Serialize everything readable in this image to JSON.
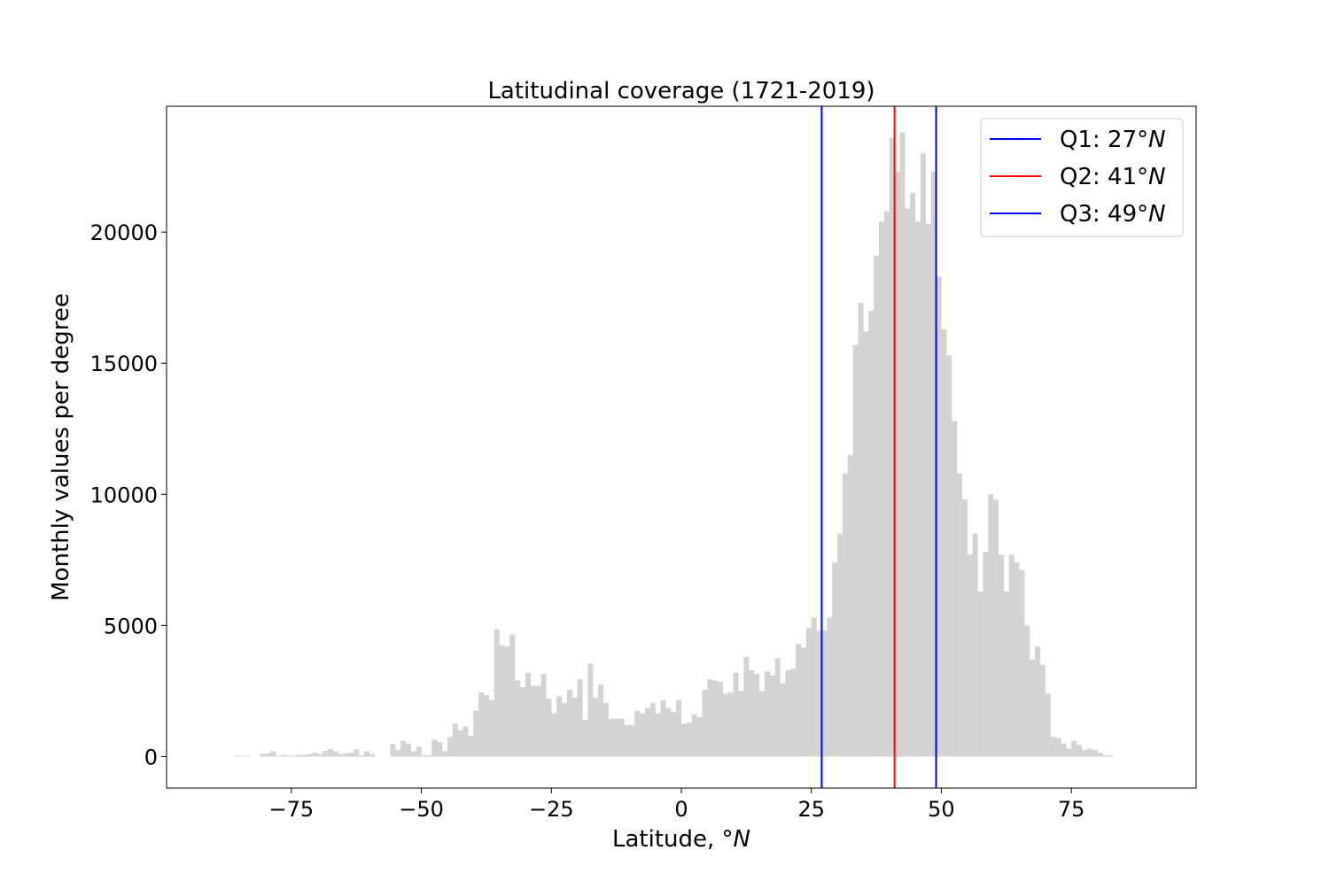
{
  "chart_data": {
    "type": "bar",
    "title": "Latitudinal coverage (1721-2019)",
    "xlabel": "Latitude, °",
    "xlabel_unit": "N",
    "ylabel": "Monthly values per degree",
    "xlim": [
      -99,
      99
    ],
    "ylim": [
      -1200,
      24800
    ],
    "xticks": [
      -75,
      -50,
      -25,
      0,
      25,
      50,
      75
    ],
    "xtick_labels": [
      "−75",
      "−50",
      "−25",
      "0",
      "25",
      "50",
      "75"
    ],
    "yticks": [
      0,
      5000,
      10000,
      15000,
      20000
    ],
    "ytick_labels": [
      "0",
      "5000",
      "10000",
      "15000",
      "20000"
    ],
    "grid": false,
    "bar_color": "#d3d3d3",
    "bin_width": 1,
    "bins": [
      [
        -86,
        30
      ],
      [
        -85,
        30
      ],
      [
        -84,
        30
      ],
      [
        -81,
        100
      ],
      [
        -80,
        120
      ],
      [
        -79,
        200
      ],
      [
        -78,
        30
      ],
      [
        -77,
        60
      ],
      [
        -76,
        30
      ],
      [
        -75,
        30
      ],
      [
        -74,
        60
      ],
      [
        -73,
        60
      ],
      [
        -72,
        100
      ],
      [
        -71,
        150
      ],
      [
        -70,
        100
      ],
      [
        -69,
        220
      ],
      [
        -68,
        280
      ],
      [
        -67,
        200
      ],
      [
        -66,
        100
      ],
      [
        -65,
        120
      ],
      [
        -64,
        150
      ],
      [
        -63,
        280
      ],
      [
        -62,
        50
      ],
      [
        -61,
        200
      ],
      [
        -60,
        100
      ],
      [
        -56,
        480
      ],
      [
        -55,
        250
      ],
      [
        -54,
        600
      ],
      [
        -53,
        500
      ],
      [
        -52,
        200
      ],
      [
        -51,
        380
      ],
      [
        -50,
        50
      ],
      [
        -49,
        50
      ],
      [
        -48,
        650
      ],
      [
        -47,
        550
      ],
      [
        -46,
        200
      ],
      [
        -45,
        750
      ],
      [
        -44,
        1250
      ],
      [
        -43,
        1000
      ],
      [
        -42,
        1150
      ],
      [
        -41,
        800
      ],
      [
        -40,
        1750
      ],
      [
        -39,
        2450
      ],
      [
        -38,
        2350
      ],
      [
        -37,
        2150
      ],
      [
        -36,
        4850
      ],
      [
        -35,
        4250
      ],
      [
        -34,
        4200
      ],
      [
        -33,
        4650
      ],
      [
        -32,
        2900
      ],
      [
        -31,
        2650
      ],
      [
        -30,
        3200
      ],
      [
        -29,
        2700
      ],
      [
        -28,
        2700
      ],
      [
        -27,
        3150
      ],
      [
        -26,
        2200
      ],
      [
        -25,
        1650
      ],
      [
        -24,
        2300
      ],
      [
        -23,
        2050
      ],
      [
        -22,
        2550
      ],
      [
        -21,
        2250
      ],
      [
        -20,
        2950
      ],
      [
        -19,
        1400
      ],
      [
        -18,
        3550
      ],
      [
        -17,
        2250
      ],
      [
        -16,
        2750
      ],
      [
        -15,
        2050
      ],
      [
        -14,
        1450
      ],
      [
        -13,
        1450
      ],
      [
        -12,
        1450
      ],
      [
        -11,
        1200
      ],
      [
        -10,
        1200
      ],
      [
        -9,
        1750
      ],
      [
        -8,
        1650
      ],
      [
        -7,
        1850
      ],
      [
        -6,
        2050
      ],
      [
        -5,
        1650
      ],
      [
        -4,
        2150
      ],
      [
        -3,
        1850
      ],
      [
        -2,
        1700
      ],
      [
        -1,
        2150
      ],
      [
        0,
        1250
      ],
      [
        1,
        1300
      ],
      [
        2,
        1600
      ],
      [
        3,
        1500
      ],
      [
        4,
        2550
      ],
      [
        5,
        2950
      ],
      [
        6,
        2900
      ],
      [
        7,
        2850
      ],
      [
        8,
        2400
      ],
      [
        9,
        2450
      ],
      [
        10,
        3200
      ],
      [
        11,
        2500
      ],
      [
        12,
        3800
      ],
      [
        13,
        3300
      ],
      [
        14,
        3150
      ],
      [
        15,
        2500
      ],
      [
        16,
        3250
      ],
      [
        17,
        3100
      ],
      [
        18,
        3750
      ],
      [
        19,
        2800
      ],
      [
        20,
        3300
      ],
      [
        21,
        3350
      ],
      [
        22,
        4300
      ],
      [
        23,
        4150
      ],
      [
        24,
        4900
      ],
      [
        25,
        5300
      ],
      [
        26,
        4800
      ],
      [
        27,
        4800
      ],
      [
        28,
        5300
      ],
      [
        29,
        7400
      ],
      [
        30,
        8500
      ],
      [
        31,
        10800
      ],
      [
        32,
        11500
      ],
      [
        33,
        15700
      ],
      [
        34,
        17300
      ],
      [
        35,
        16200
      ],
      [
        36,
        17000
      ],
      [
        37,
        19100
      ],
      [
        38,
        20400
      ],
      [
        39,
        20800
      ],
      [
        40,
        23600
      ],
      [
        41,
        22300
      ],
      [
        42,
        23800
      ],
      [
        43,
        20900
      ],
      [
        44,
        21500
      ],
      [
        45,
        20400
      ],
      [
        46,
        23000
      ],
      [
        47,
        20300
      ],
      [
        48,
        22300
      ],
      [
        49,
        18300
      ],
      [
        50,
        16300
      ],
      [
        51,
        15300
      ],
      [
        52,
        12800
      ],
      [
        53,
        10800
      ],
      [
        54,
        9800
      ],
      [
        55,
        7700
      ],
      [
        56,
        8500
      ],
      [
        57,
        6300
      ],
      [
        58,
        7800
      ],
      [
        59,
        10000
      ],
      [
        60,
        9800
      ],
      [
        61,
        7700
      ],
      [
        62,
        6300
      ],
      [
        63,
        7700
      ],
      [
        64,
        7400
      ],
      [
        65,
        7100
      ],
      [
        66,
        5000
      ],
      [
        67,
        3700
      ],
      [
        68,
        4200
      ],
      [
        69,
        3500
      ],
      [
        70,
        2400
      ],
      [
        71,
        750
      ],
      [
        72,
        700
      ],
      [
        73,
        500
      ],
      [
        74,
        300
      ],
      [
        75,
        600
      ],
      [
        76,
        450
      ],
      [
        77,
        250
      ],
      [
        78,
        300
      ],
      [
        79,
        250
      ],
      [
        80,
        150
      ],
      [
        81,
        50
      ],
      [
        82,
        50
      ]
    ],
    "quartile_lines": [
      {
        "label": "Q1: 27°",
        "unit": "N",
        "x": 27,
        "color": "#0000ff"
      },
      {
        "label": "Q2: 41°",
        "unit": "N",
        "x": 41,
        "color": "#ff0000"
      },
      {
        "label": "Q3: 49°",
        "unit": "N",
        "x": 49,
        "color": "#0000ff"
      }
    ],
    "legend": {
      "location": "upper right"
    }
  }
}
